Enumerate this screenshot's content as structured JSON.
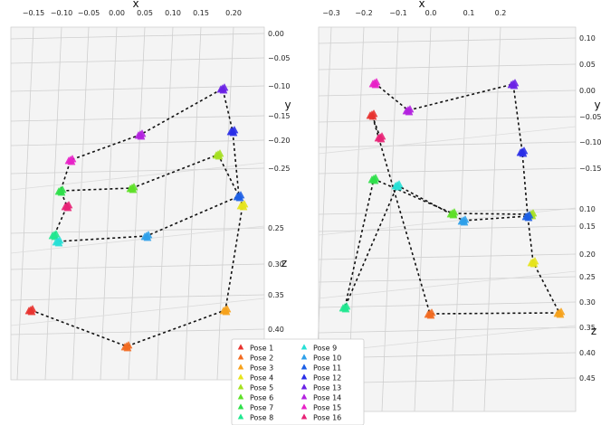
{
  "chart_data": [
    {
      "type": "scatter",
      "title": "",
      "xlabel": "x",
      "ylabel": "y",
      "zlabel": "z",
      "xticks": [
        "−0.15",
        "−0.10",
        "−0.05",
        "0.00",
        "0.05",
        "0.10",
        "0.15",
        "0.20"
      ],
      "yticks": [
        "0.00",
        "−0.05",
        "−0.10",
        "−0.15",
        "−0.20",
        "−0.25"
      ],
      "zticks": [
        "0.25",
        "0.30",
        "0.35",
        "0.40"
      ],
      "grid": true,
      "path_style": "dashed",
      "poses": [
        {
          "pose": 1,
          "color": "#e8332f",
          "x": -0.15,
          "y": -0.05,
          "z": 0.38
        },
        {
          "pose": 2,
          "color": "#f36b21",
          "x": 0.02,
          "y": -0.05,
          "z": 0.41
        },
        {
          "pose": 3,
          "color": "#f7a21b",
          "x": 0.19,
          "y": -0.05,
          "z": 0.38
        },
        {
          "pose": 4,
          "color": "#e6e41c",
          "x": 0.21,
          "y": -0.24,
          "z": 0.25
        },
        {
          "pose": 5,
          "color": "#a5e020",
          "x": 0.18,
          "y": -0.23,
          "z": 0.22
        },
        {
          "pose": 6,
          "color": "#5ee027",
          "x": 0.01,
          "y": -0.24,
          "z": 0.2
        },
        {
          "pose": 7,
          "color": "#2ee04a",
          "x": -0.1,
          "y": -0.25,
          "z": 0.2
        },
        {
          "pose": 8,
          "color": "#20e890",
          "x": -0.1,
          "y": -0.27,
          "z": 0.28
        },
        {
          "pose": 9,
          "color": "#27e0d6",
          "x": -0.1,
          "y": -0.26,
          "z": 0.29
        },
        {
          "pose": 10,
          "color": "#2ea0ea",
          "x": 0.05,
          "y": -0.24,
          "z": 0.28
        },
        {
          "pose": 11,
          "color": "#1c5fe6",
          "x": 0.2,
          "y": -0.25,
          "z": 0.24
        },
        {
          "pose": 12,
          "color": "#2a2ee8",
          "x": 0.2,
          "y": -0.18,
          "z": 0.15
        },
        {
          "pose": 13,
          "color": "#6b22e6",
          "x": 0.18,
          "y": -0.1,
          "z": 0.1
        },
        {
          "pose": 14,
          "color": "#b322e0",
          "x": 0.04,
          "y": -0.18,
          "z": 0.16
        },
        {
          "pose": 15,
          "color": "#e822c8",
          "x": -0.1,
          "y": -0.23,
          "z": 0.18
        },
        {
          "pose": 16,
          "color": "#e82276",
          "x": -0.1,
          "y": -0.25,
          "z": 0.22
        }
      ]
    },
    {
      "type": "scatter",
      "title": "",
      "xlabel": "x",
      "ylabel": "y",
      "zlabel": "z",
      "xticks": [
        "−0.3",
        "−0.2",
        "−0.1",
        "0.0",
        "0.1",
        "0.2"
      ],
      "yticks": [
        "0.10",
        "0.05",
        "0.00",
        "−0.05",
        "−0.10",
        "−0.15"
      ],
      "zticks": [
        "0.10",
        "0.15",
        "0.20",
        "0.25",
        "0.30",
        "0.35",
        "0.40",
        "0.45"
      ],
      "grid": true,
      "path_style": "dashed",
      "poses": [
        {
          "pose": 1,
          "color": "#e8332f",
          "x": -0.2,
          "y": 0.0,
          "z": 0.0
        },
        {
          "pose": 2,
          "color": "#f36b21",
          "x": 0.05,
          "y": -0.2,
          "z": 0.34
        },
        {
          "pose": 3,
          "color": "#f7a21b",
          "x": 0.19,
          "y": -0.2,
          "z": 0.32
        },
        {
          "pose": 4,
          "color": "#e6e41c",
          "x": 0.13,
          "y": -0.18,
          "z": 0.22
        },
        {
          "pose": 5,
          "color": "#a5e020",
          "x": 0.13,
          "y": -0.1,
          "z": 0.12
        },
        {
          "pose": 6,
          "color": "#5ee027",
          "x": -0.05,
          "y": -0.1,
          "z": 0.12
        },
        {
          "pose": 7,
          "color": "#2ee04a",
          "x": -0.2,
          "y": -0.1,
          "z": 0.05
        },
        {
          "pose": 8,
          "color": "#20e890",
          "x": -0.27,
          "y": -0.2,
          "z": 0.32
        },
        {
          "pose": 9,
          "color": "#27e0d6",
          "x": -0.15,
          "y": -0.1,
          "z": 0.06
        },
        {
          "pose": 10,
          "color": "#2ea0ea",
          "x": -0.02,
          "y": -0.1,
          "z": 0.13
        },
        {
          "pose": 11,
          "color": "#1c5fe6",
          "x": 0.12,
          "y": -0.1,
          "z": 0.12
        },
        {
          "pose": 12,
          "color": "#2a2ee8",
          "x": 0.12,
          "y": -0.1,
          "z": 0.0
        },
        {
          "pose": 13,
          "color": "#6b22e6",
          "x": 0.09,
          "y": 0.09,
          "z": 0.0
        },
        {
          "pose": 14,
          "color": "#b322e0",
          "x": -0.13,
          "y": 0.05,
          "z": 0.0
        },
        {
          "pose": 15,
          "color": "#e822c8",
          "x": -0.21,
          "y": 0.09,
          "z": 0.0
        },
        {
          "pose": 16,
          "color": "#e82276",
          "x": -0.2,
          "y": -0.05,
          "z": 0.0
        }
      ]
    }
  ],
  "legend": {
    "placement": "bottom-center",
    "entries": [
      {
        "label": "Pose 1",
        "color": "#e8332f"
      },
      {
        "label": "Pose 2",
        "color": "#f36b21"
      },
      {
        "label": "Pose 3",
        "color": "#f7a21b"
      },
      {
        "label": "Pose 4",
        "color": "#e6e41c"
      },
      {
        "label": "Pose 5",
        "color": "#a5e020"
      },
      {
        "label": "Pose 6",
        "color": "#5ee027"
      },
      {
        "label": "Pose 7",
        "color": "#2ee04a"
      },
      {
        "label": "Pose 8",
        "color": "#20e890"
      },
      {
        "label": "Pose 9",
        "color": "#27e0d6"
      },
      {
        "label": "Pose 10",
        "color": "#2ea0ea"
      },
      {
        "label": "Pose 11",
        "color": "#1c5fe6"
      },
      {
        "label": "Pose 12",
        "color": "#2a2ee8"
      },
      {
        "label": "Pose 13",
        "color": "#6b22e6"
      },
      {
        "label": "Pose 14",
        "color": "#b322e0"
      },
      {
        "label": "Pose 15",
        "color": "#e822c8"
      },
      {
        "label": "Pose 16",
        "color": "#e82276"
      }
    ]
  }
}
